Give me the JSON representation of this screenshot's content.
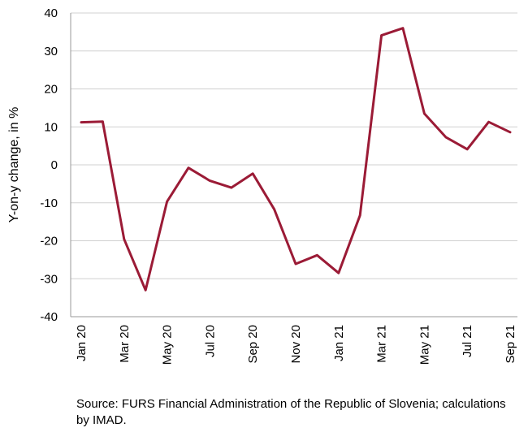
{
  "chart_data": {
    "type": "line",
    "title": "",
    "xlabel": "",
    "ylabel": "Y-on-y change, in %",
    "ylim": [
      -40,
      40
    ],
    "yticks": [
      -40,
      -30,
      -20,
      -10,
      0,
      10,
      20,
      30,
      40
    ],
    "grid": true,
    "legend": "none",
    "x": [
      "Jan 20",
      "Feb 20",
      "Mar 20",
      "Apr 20",
      "May 20",
      "Jun 20",
      "Jul 20",
      "Aug 20",
      "Sep 20",
      "Oct 20",
      "Nov 20",
      "Dec 20",
      "Jan 21",
      "Feb 21",
      "Mar 21",
      "Apr 21",
      "May 21",
      "Jun 21",
      "Jul 21",
      "Aug 21",
      "Sep 21"
    ],
    "xtick_labels": [
      "Jan 20",
      "Mar 20",
      "May 20",
      "Jul 20",
      "Sep 20",
      "Nov 20",
      "Jan 21",
      "Mar 21",
      "May 21",
      "Jul 21",
      "Sep 21"
    ],
    "series": [
      {
        "color": "#9b1b36",
        "values": [
          11.2,
          11.4,
          -19.6,
          -33.0,
          -9.7,
          -0.8,
          -4.2,
          -6.0,
          -2.3,
          -11.7,
          -26.1,
          -23.8,
          -28.5,
          -13.3,
          34.1,
          36.0,
          13.5,
          7.3,
          4.1,
          11.3,
          8.6
        ]
      }
    ]
  },
  "source_note": "Source: FURS Financial Administration of the Republic of Slovenia; calculations by IMAD."
}
